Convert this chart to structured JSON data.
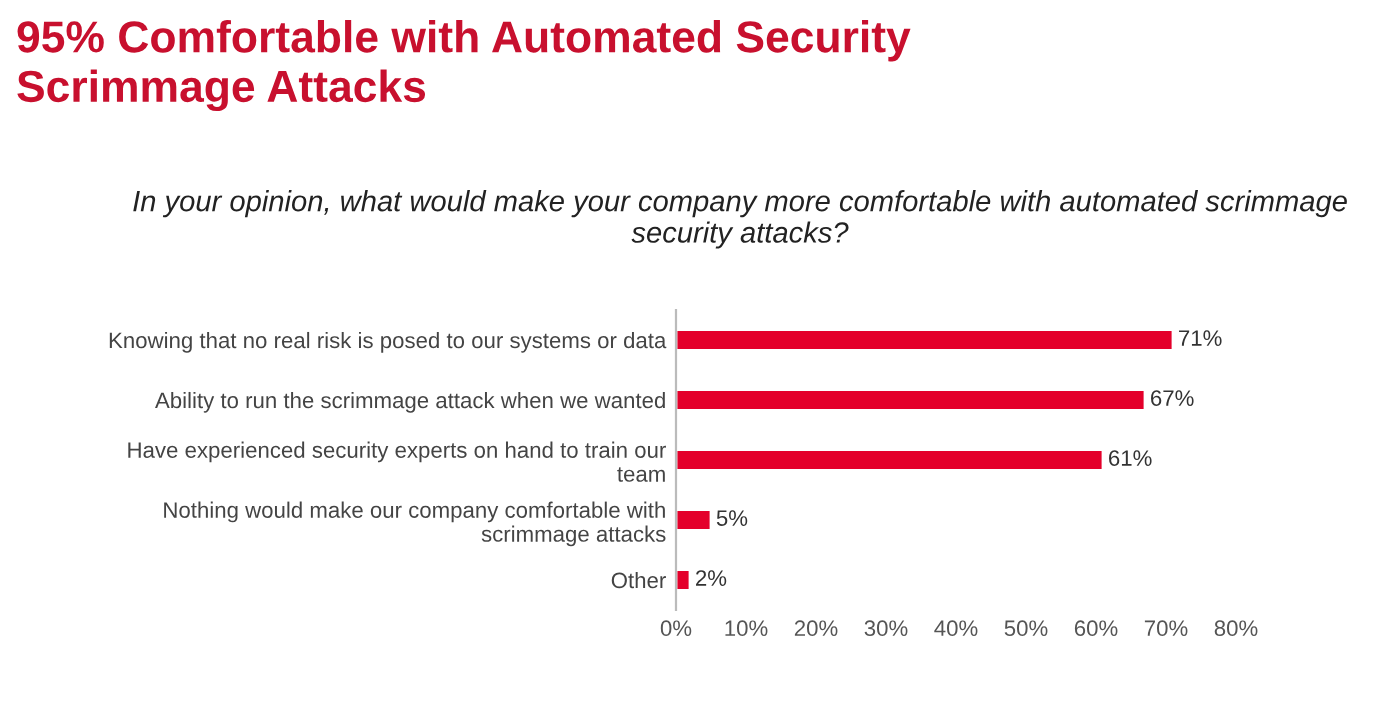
{
  "chart_data": {
    "type": "bar",
    "orientation": "horizontal",
    "title": "95% Comfortable with Automated Security\nScrimmage Attacks",
    "subtitle": "In your opinion, what would make your company more comfortable with automated scrimmage\nsecurity attacks?",
    "categories": [
      "Knowing that no real risk is posed to our systems or data",
      "Ability to run the scrimmage attack when we wanted",
      "Have experienced security experts on hand to train our\nteam",
      "Nothing would make our company comfortable with\nscrimmage attacks",
      "Other"
    ],
    "values": [
      71,
      67,
      61,
      5,
      2
    ],
    "value_labels": [
      "71%",
      "67%",
      "61%",
      "5%",
      "2%"
    ],
    "color": "#e4002b",
    "xlim": [
      0,
      80
    ],
    "xticks": [
      {
        "value": 0,
        "label": "0%"
      },
      {
        "value": 10,
        "label": "10%"
      },
      {
        "value": 20,
        "label": "20%"
      },
      {
        "value": 30,
        "label": "30%"
      },
      {
        "value": 40,
        "label": "40%"
      },
      {
        "value": 50,
        "label": "50%"
      },
      {
        "value": 60,
        "label": "60%"
      },
      {
        "value": 70,
        "label": "70%"
      },
      {
        "value": 80,
        "label": "80%"
      }
    ],
    "grid": false,
    "legend": false
  }
}
